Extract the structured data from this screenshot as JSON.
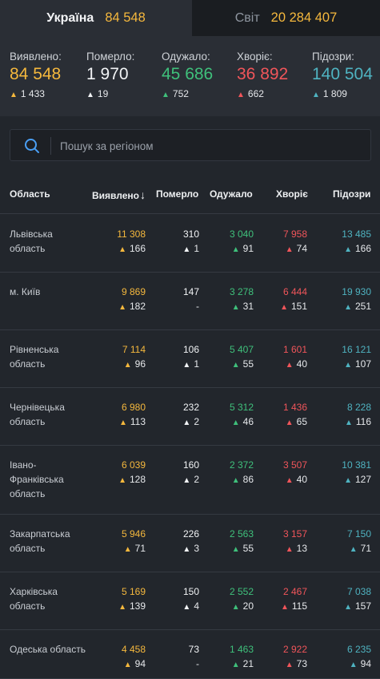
{
  "tabs": [
    {
      "label": "Україна",
      "value": "84 548"
    },
    {
      "label": "Світ",
      "value": "20 284 407"
    }
  ],
  "summary": [
    {
      "label": "Виявлено:",
      "value": "84 548",
      "delta": "1 433",
      "color": "yellow"
    },
    {
      "label": "Померло:",
      "value": "1 970",
      "delta": "19",
      "color": "white"
    },
    {
      "label": "Одужало:",
      "value": "45 686",
      "delta": "752",
      "color": "green"
    },
    {
      "label": "Хворіє:",
      "value": "36 892",
      "delta": "662",
      "color": "red"
    },
    {
      "label": "Підозри:",
      "value": "140 504",
      "delta": "1 809",
      "color": "teal"
    }
  ],
  "search": {
    "placeholder": "Пошук за регіоном"
  },
  "table": {
    "headers": {
      "region": "Область",
      "confirmed": "Виявлено",
      "sort_arrow": "↓",
      "deaths": "Померло",
      "recovered": "Одужало",
      "sick": "Хворіє",
      "suspected": "Підозри"
    },
    "rows": [
      {
        "region": [
          "Львівська",
          "область"
        ],
        "confirmed": "11 308",
        "confirmed_d": "166",
        "deaths": "310",
        "deaths_d": "1",
        "recovered": "3 040",
        "recovered_d": "91",
        "sick": "7 958",
        "sick_d": "74",
        "suspected": "13 485",
        "suspected_d": "166"
      },
      {
        "region": [
          "м. Київ"
        ],
        "confirmed": "9 869",
        "confirmed_d": "182",
        "deaths": "147",
        "deaths_d": "-",
        "recovered": "3 278",
        "recovered_d": "31",
        "sick": "6 444",
        "sick_d": "151",
        "suspected": "19 930",
        "suspected_d": "251"
      },
      {
        "region": [
          "Рівненська",
          "область"
        ],
        "confirmed": "7 114",
        "confirmed_d": "96",
        "deaths": "106",
        "deaths_d": "1",
        "recovered": "5 407",
        "recovered_d": "55",
        "sick": "1 601",
        "sick_d": "40",
        "suspected": "16 121",
        "suspected_d": "107"
      },
      {
        "region": [
          "Чернівецька",
          "область"
        ],
        "confirmed": "6 980",
        "confirmed_d": "113",
        "deaths": "232",
        "deaths_d": "2",
        "recovered": "5 312",
        "recovered_d": "46",
        "sick": "1 436",
        "sick_d": "65",
        "suspected": "8 228",
        "suspected_d": "116"
      },
      {
        "region": [
          "Івано-",
          "Франківська",
          "область"
        ],
        "confirmed": "6 039",
        "confirmed_d": "128",
        "deaths": "160",
        "deaths_d": "2",
        "recovered": "2 372",
        "recovered_d": "86",
        "sick": "3 507",
        "sick_d": "40",
        "suspected": "10 381",
        "suspected_d": "127"
      },
      {
        "region": [
          "Закарпатська",
          "область"
        ],
        "confirmed": "5 946",
        "confirmed_d": "71",
        "deaths": "226",
        "deaths_d": "3",
        "recovered": "2 563",
        "recovered_d": "55",
        "sick": "3 157",
        "sick_d": "13",
        "suspected": "7 150",
        "suspected_d": "71"
      },
      {
        "region": [
          "Харківська",
          "область"
        ],
        "confirmed": "5 169",
        "confirmed_d": "139",
        "deaths": "150",
        "deaths_d": "4",
        "recovered": "2 552",
        "recovered_d": "20",
        "sick": "2 467",
        "sick_d": "115",
        "suspected": "7 038",
        "suspected_d": "157"
      },
      {
        "region": [
          "Одеська область"
        ],
        "confirmed": "4 458",
        "confirmed_d": "94",
        "deaths": "73",
        "deaths_d": "-",
        "recovered": "1 463",
        "recovered_d": "21",
        "sick": "2 922",
        "sick_d": "73",
        "suspected": "6 235",
        "suspected_d": "94"
      }
    ]
  },
  "colors": {
    "yellow": "#f5b83d",
    "white": "#f1f3f5",
    "green": "#3fc07b",
    "red": "#f0555a",
    "teal": "#4fb3c1",
    "background": "#22262c",
    "panel": "#2a2e35"
  },
  "icons": {
    "search": "search-icon",
    "up": "arrow-up-icon",
    "sort": "sort-down-icon"
  }
}
